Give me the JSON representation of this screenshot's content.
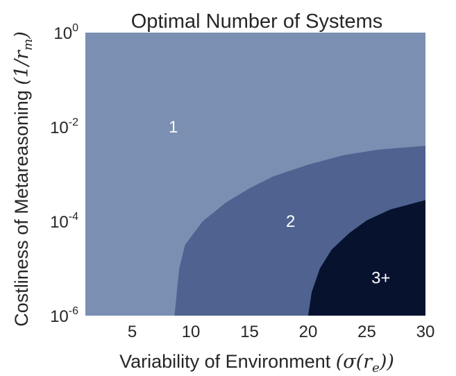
{
  "chart_data": {
    "type": "contour",
    "title": "Optimal Number of Systems",
    "xlabel": "Variability of Environment (σ(r_e))",
    "xlabel_text": "Variability of Environment ",
    "xlabel_math": "(σ(r",
    "xlabel_sub": "e",
    "xlabel_math_end": "))",
    "ylabel": "Costliness of Metareasoning (1/r_m)",
    "ylabel_text": "Costliness of Metareasoning ",
    "ylabel_math": "(1/r",
    "ylabel_sub": "m",
    "ylabel_math_end": ")",
    "xlim": [
      1,
      30
    ],
    "ylim_log10": [
      -6,
      0
    ],
    "y_scale": "log",
    "x_ticks": [
      5,
      10,
      15,
      20,
      25,
      30
    ],
    "y_ticks": [
      {
        "base": "10",
        "exp": "0",
        "log10": 0
      },
      {
        "base": "10",
        "exp": "-2",
        "log10": -2
      },
      {
        "base": "10",
        "exp": "-4",
        "log10": -4
      },
      {
        "base": "10",
        "exp": "-6",
        "log10": -6
      }
    ],
    "grid": false,
    "colors": {
      "region_1": "#7b8fb3",
      "region_2": "#4f6290",
      "region_3plus": "#07122f"
    },
    "regions": [
      {
        "label": "1",
        "color_key": "region_1",
        "label_at": {
          "x": 8.5,
          "log10y": -2.0
        }
      },
      {
        "label": "2",
        "color_key": "region_2",
        "label_at": {
          "x": 18.5,
          "log10y": -4.0
        }
      },
      {
        "label": "3+",
        "color_key": "region_3plus",
        "label_at": {
          "x": 26.2,
          "log10y": -5.2
        }
      }
    ],
    "boundary_1_2": [
      {
        "x": 8.6,
        "log10y": -6.0
      },
      {
        "x": 8.8,
        "log10y": -5.5
      },
      {
        "x": 9.0,
        "log10y": -5.0
      },
      {
        "x": 9.5,
        "log10y": -4.5
      },
      {
        "x": 11.0,
        "log10y": -4.0
      },
      {
        "x": 13.0,
        "log10y": -3.6
      },
      {
        "x": 15.0,
        "log10y": -3.3
      },
      {
        "x": 17.0,
        "log10y": -3.05
      },
      {
        "x": 20.0,
        "log10y": -2.8
      },
      {
        "x": 23.0,
        "log10y": -2.6
      },
      {
        "x": 26.0,
        "log10y": -2.48
      },
      {
        "x": 30.0,
        "log10y": -2.4
      }
    ],
    "boundary_2_3": [
      {
        "x": 20.0,
        "log10y": -6.0
      },
      {
        "x": 20.3,
        "log10y": -5.5
      },
      {
        "x": 21.0,
        "log10y": -5.0
      },
      {
        "x": 22.0,
        "log10y": -4.6
      },
      {
        "x": 23.5,
        "log10y": -4.25
      },
      {
        "x": 25.0,
        "log10y": -3.98
      },
      {
        "x": 27.0,
        "log10y": -3.75
      },
      {
        "x": 30.0,
        "log10y": -3.55
      }
    ]
  }
}
